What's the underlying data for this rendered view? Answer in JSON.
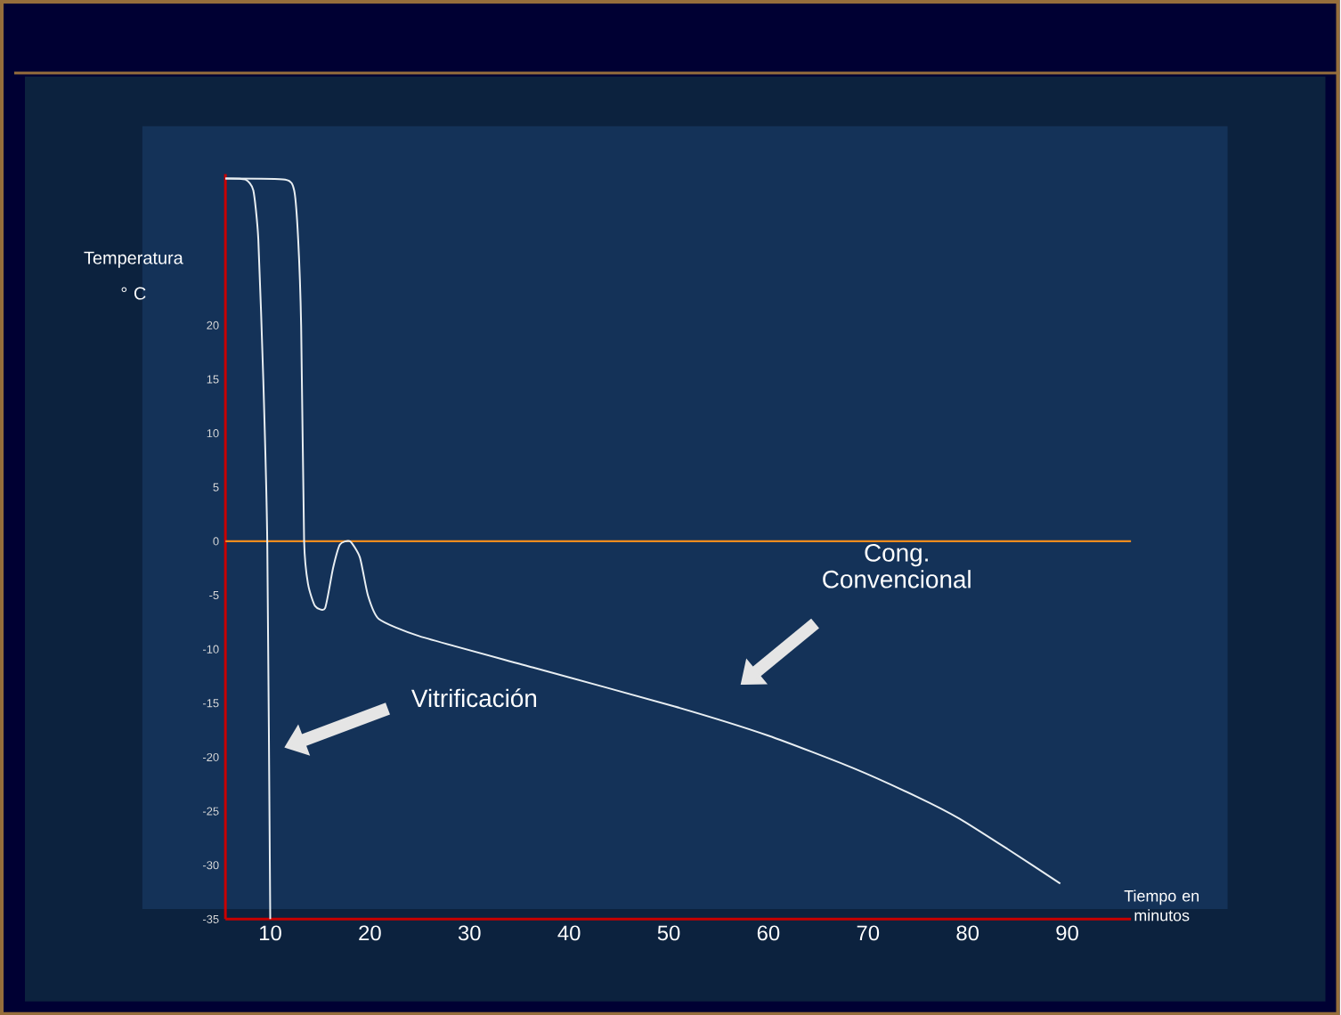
{
  "chart_data": {
    "type": "line",
    "xlabel": "Tiempo en minutos",
    "ylabel": "Temperatura ° C",
    "xlim": [
      5.5,
      96.4
    ],
    "ylim": [
      -35,
      34
    ],
    "xticks": [
      10,
      20,
      30,
      40,
      50,
      60,
      70,
      80,
      90
    ],
    "yticks": [
      20,
      15,
      10,
      5,
      0,
      -5,
      -10,
      -15,
      -20,
      -25,
      -30,
      -35
    ],
    "series": [
      {
        "color": "#e8eef2",
        "x": [
          5.5,
          7.5,
          8.3,
          8.8,
          9.3,
          9.7,
          10
        ],
        "values": [
          33.6,
          33.5,
          32.5,
          28,
          15,
          0,
          -35
        ]
      },
      {
        "color": "#e8eef2",
        "x": [
          5.5,
          11.5,
          12.4,
          12.8,
          13.1,
          13.4,
          13.8,
          14.5,
          15.5,
          16.3,
          17.0,
          18.0,
          19.0,
          19.8,
          20.9,
          25,
          36.4,
          50.6,
          60,
          68.5,
          75,
          79.2,
          84,
          89.3
        ],
        "values": [
          33.6,
          33.5,
          32.5,
          28,
          20,
          0,
          -4,
          -6.0,
          -6.2,
          -2.5,
          -0.3,
          0,
          -1.5,
          -5,
          -7.2,
          -8.8,
          -11.7,
          -15.3,
          -18,
          -21,
          -23.7,
          -25.7,
          -28.5,
          -31.7
        ]
      }
    ],
    "ref_lines": [
      {
        "axis": "y",
        "value": 0,
        "color": "#f08c1e"
      }
    ],
    "annotations": [
      "Cong. Convencional",
      "Vitrificación"
    ]
  }
}
